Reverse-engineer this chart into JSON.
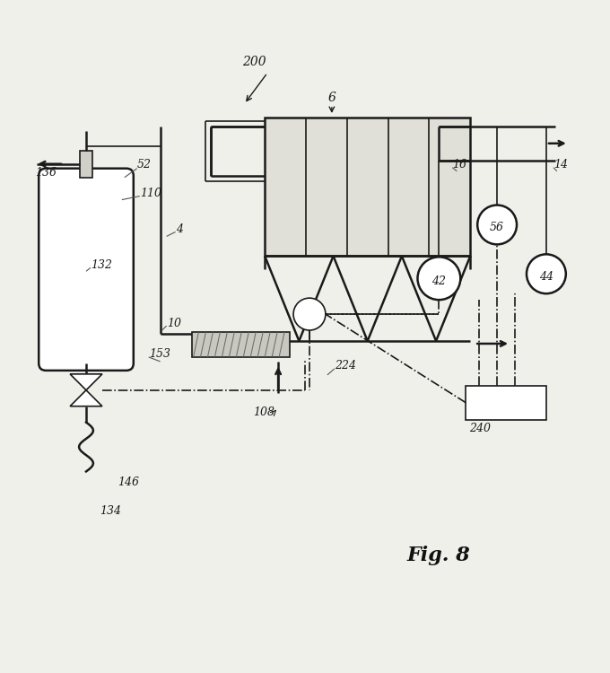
{
  "bg_color": "#f0f0eb",
  "line_color": "#1a1a1a",
  "title": "Fig. 8",
  "fig_w": 6.8,
  "fig_h": 7.5,
  "dpi": 100
}
